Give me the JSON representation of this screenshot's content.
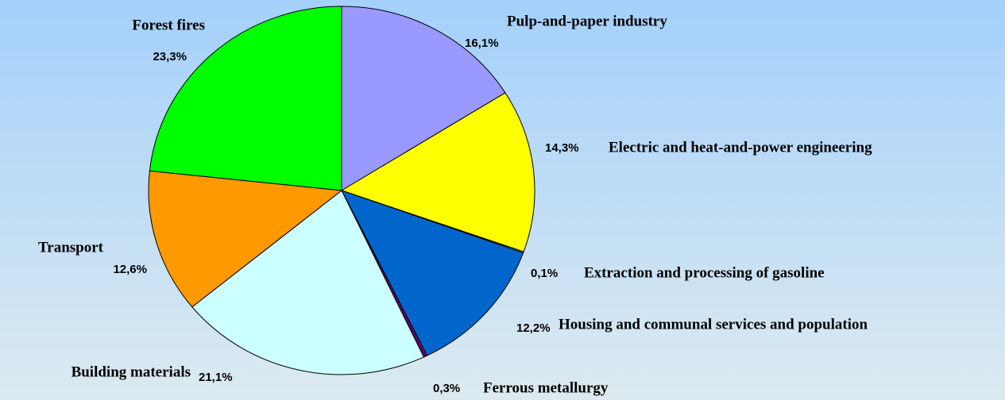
{
  "chart_data": {
    "type": "pie",
    "categories": [
      "Pulp-and-paper industry",
      "Electric and heat-and-power engineering",
      "Extraction and processing of gasoline",
      "Housing and communal services and population",
      "Ferrous metallurgy",
      "Building materials",
      "Transport",
      "Forest fires"
    ],
    "values": [
      16.1,
      14.3,
      0.1,
      12.2,
      0.3,
      21.1,
      12.6,
      23.3
    ],
    "value_labels": [
      "16,1%",
      "14,3%",
      "0,1%",
      "12,2%",
      "0,3%",
      "21,1%",
      "12,6%",
      "23,3%"
    ],
    "colors": [
      "#9999ff",
      "#ffff00",
      "#ffffcc",
      "#0066cc",
      "#660066",
      "#ccffff",
      "#ff9900",
      "#00ff00"
    ]
  }
}
